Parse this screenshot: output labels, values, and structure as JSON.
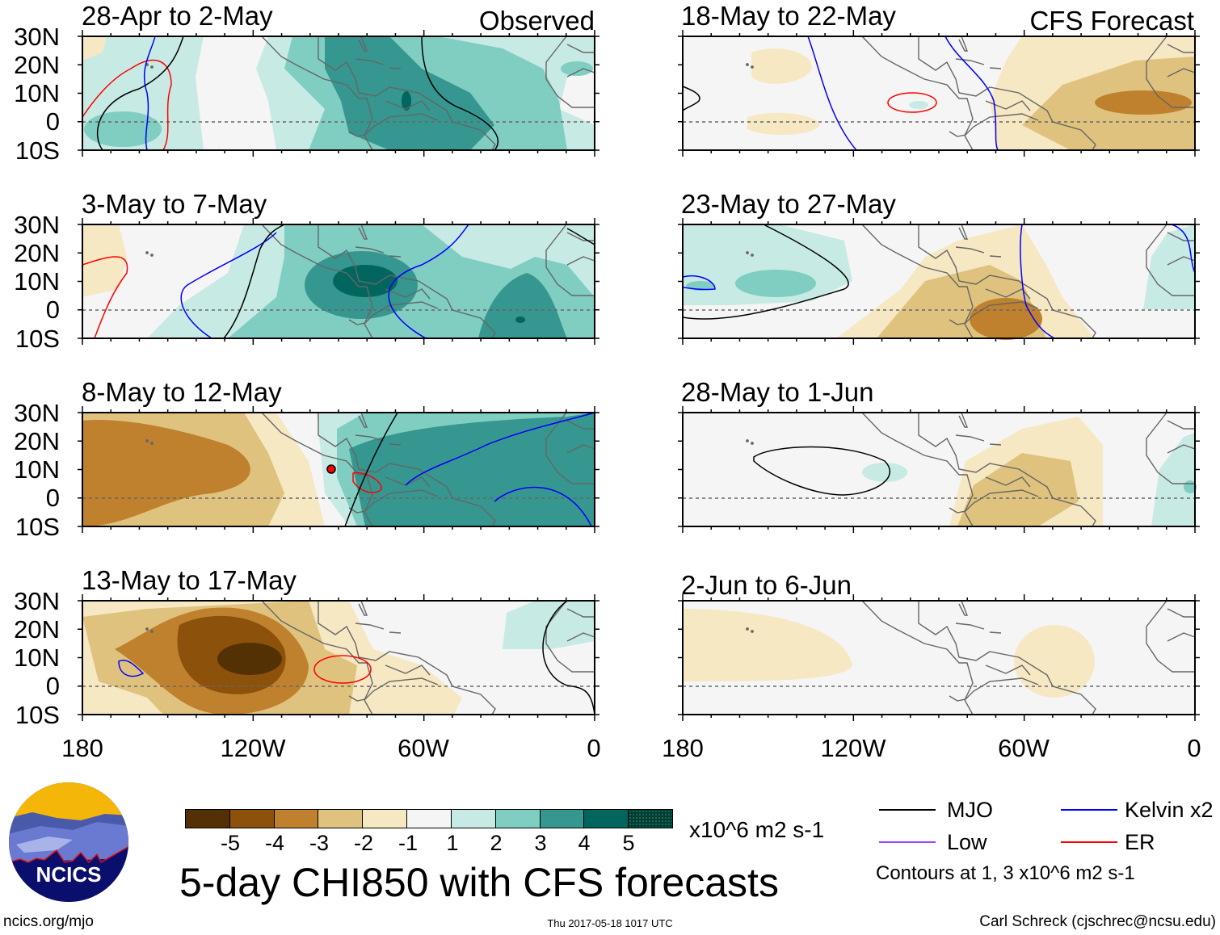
{
  "colors": {
    "neg5": "#543005",
    "neg4": "#8c510a",
    "neg3": "#bf812d",
    "neg2": "#dfc27d",
    "neg1": "#f6e8c3",
    "neutral": "#f5f5f5",
    "pos1": "#c7eae5",
    "pos2": "#80cdc1",
    "pos3": "#35978f",
    "pos4": "#01665e",
    "pos5": "#003c30",
    "mjo": "#000000",
    "kelvin": "#0000ff",
    "low": "#a040ff",
    "er": "#ff0000"
  },
  "panels": [
    {
      "title": "28-Apr to 2-May",
      "label": "Observed"
    },
    {
      "title": "18-May to 22-May",
      "label": "CFS Forecast"
    },
    {
      "title": "3-May to 7-May"
    },
    {
      "title": "23-May to 27-May"
    },
    {
      "title": "8-May to 12-May"
    },
    {
      "title": "28-May to 1-Jun"
    },
    {
      "title": "13-May to 17-May"
    },
    {
      "title": "2-Jun to 6-Jun"
    }
  ],
  "lat_labels": [
    "30N",
    "20N",
    "10N",
    "0",
    "10S"
  ],
  "lon_labels": [
    "180",
    "120W",
    "60W",
    "0"
  ],
  "colorbar": {
    "ticks": [
      "-5",
      "-4",
      "-3",
      "-2",
      "-1",
      "1",
      "2",
      "3",
      "4",
      "5"
    ],
    "units": "x10^6 m2 s-1"
  },
  "title": "5-day CHI850 with CFS forecasts",
  "legend": {
    "mjo": "MJO",
    "kelvin": "Kelvin x2",
    "low": "Low",
    "er": "ER",
    "contours": "Contours at 1, 3 x10^6 m2 s-1"
  },
  "logo": {
    "text": "NCICS"
  },
  "footer": {
    "url": "ncics.org/mjo",
    "timestamp": "Thu 2017-05-18 1017 UTC",
    "credit": "Carl Schreck (cjschrec@ncsu.edu)"
  }
}
